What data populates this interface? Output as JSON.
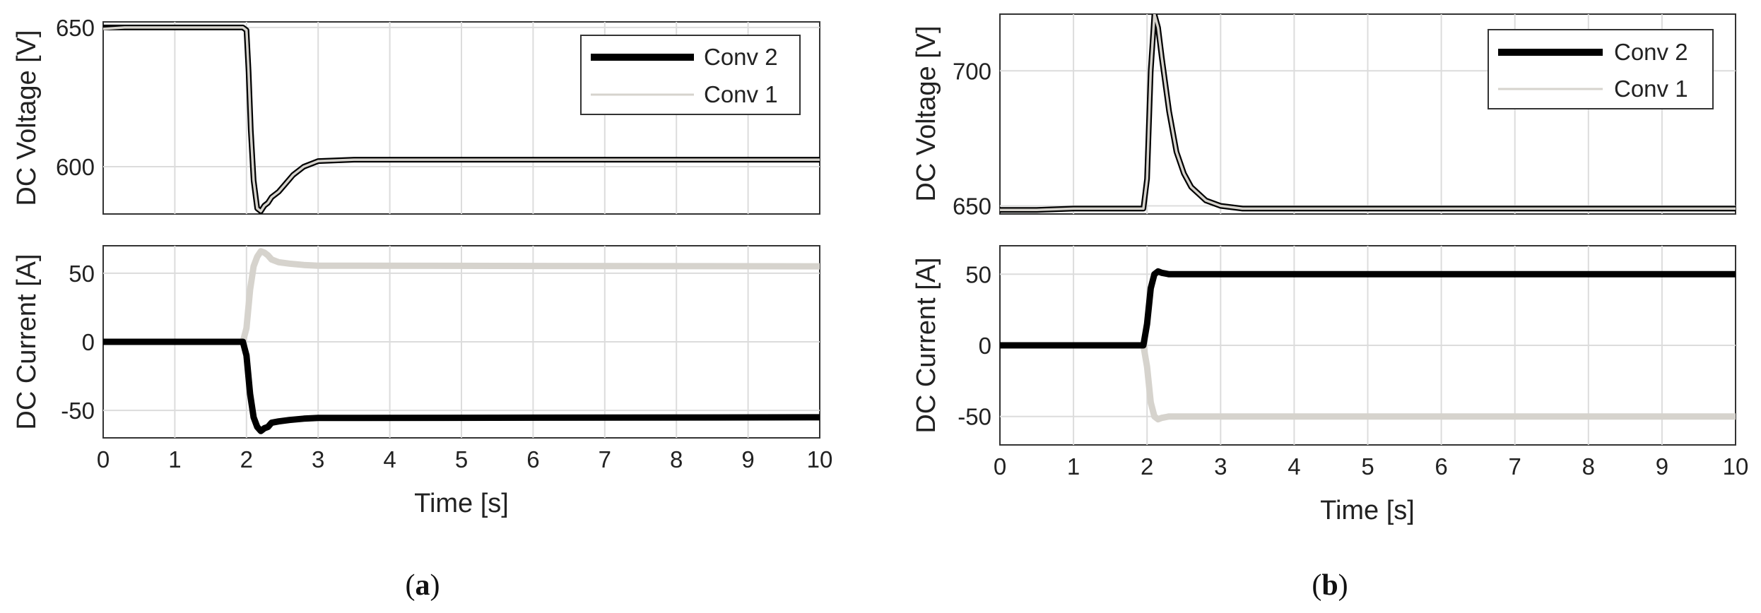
{
  "colors": {
    "conv2": "#000000",
    "conv1": "#d6d3cd",
    "grid": "#dcdcdc",
    "axis": "#333333"
  },
  "panels": [
    {
      "letter": "a",
      "caption_open": "(",
      "caption_close": ")"
    },
    {
      "letter": "b",
      "caption_open": "(",
      "caption_close": ")"
    }
  ],
  "chart_data": [
    {
      "type": "line",
      "panel": "a",
      "subplot": "top",
      "ylabel": "DC Voltage [V]",
      "xlim": [
        0,
        10
      ],
      "ylim": [
        583,
        652
      ],
      "yticks": [
        600,
        650
      ],
      "xticks": [
        0,
        1,
        2,
        3,
        4,
        5,
        6,
        7,
        8,
        9,
        10
      ],
      "grid": true,
      "legend": "top-right",
      "series": [
        {
          "name": "Conv 2",
          "color": "#000000",
          "x": [
            0,
            0.3,
            1.0,
            1.95,
            2.0,
            2.03,
            2.06,
            2.1,
            2.15,
            2.2,
            2.25,
            2.3,
            2.35,
            2.45,
            2.55,
            2.65,
            2.8,
            3.0,
            3.5,
            4,
            10
          ],
          "y": [
            650,
            650,
            650,
            650,
            649,
            634,
            613,
            595,
            585,
            584,
            586,
            587,
            589,
            591,
            594,
            597,
            600,
            602,
            602.5,
            602.5,
            602.5
          ]
        },
        {
          "name": "Conv 1",
          "color": "#d6d3cd",
          "x": [
            0,
            0.3,
            1.0,
            1.95,
            2.0,
            2.03,
            2.06,
            2.1,
            2.15,
            2.2,
            2.25,
            2.3,
            2.35,
            2.45,
            2.55,
            2.65,
            2.8,
            3.0,
            3.5,
            4,
            10
          ],
          "y": [
            649.5,
            650,
            650,
            650,
            649,
            634,
            613,
            595,
            585,
            584,
            586,
            587,
            589,
            591,
            594,
            597,
            600,
            602,
            602.5,
            602.5,
            602.5
          ]
        }
      ]
    },
    {
      "type": "line",
      "panel": "a",
      "subplot": "bottom",
      "xlabel": "Time [s]",
      "ylabel": "DC Current [A]",
      "xlim": [
        0,
        10
      ],
      "ylim": [
        -70,
        70
      ],
      "yticks": [
        -50,
        0,
        50
      ],
      "xticks": [
        0,
        1,
        2,
        3,
        4,
        5,
        6,
        7,
        8,
        9,
        10
      ],
      "grid": true,
      "series": [
        {
          "name": "Conv 2",
          "color": "#000000",
          "x": [
            0,
            1.95,
            2.0,
            2.05,
            2.1,
            2.15,
            2.2,
            2.25,
            2.3,
            2.35,
            2.45,
            2.6,
            2.8,
            3.0,
            10
          ],
          "y": [
            0,
            0,
            -10,
            -38,
            -55,
            -62,
            -65,
            -63,
            -62,
            -59,
            -58,
            -57,
            -56,
            -55.5,
            -55
          ]
        },
        {
          "name": "Conv 1",
          "color": "#d6d3cd",
          "x": [
            0,
            1.95,
            2.0,
            2.05,
            2.1,
            2.15,
            2.2,
            2.25,
            2.3,
            2.35,
            2.45,
            2.6,
            2.8,
            3.0,
            10
          ],
          "y": [
            0,
            0,
            10,
            38,
            55,
            62,
            66,
            65,
            63,
            60,
            58,
            57,
            56,
            55.5,
            55
          ]
        }
      ]
    },
    {
      "type": "line",
      "panel": "b",
      "subplot": "top",
      "ylabel": "DC Voltage [V]",
      "xlim": [
        0,
        10
      ],
      "ylim": [
        647,
        721
      ],
      "yticks": [
        650,
        700
      ],
      "xticks": [
        0,
        1,
        2,
        3,
        4,
        5,
        6,
        7,
        8,
        9,
        10
      ],
      "grid": true,
      "legend": "top-right",
      "series": [
        {
          "name": "Conv 2",
          "color": "#000000",
          "x": [
            0,
            0.5,
            1.0,
            1.95,
            2.0,
            2.05,
            2.1,
            2.15,
            2.2,
            2.3,
            2.4,
            2.5,
            2.6,
            2.8,
            3.0,
            3.3,
            4,
            10
          ],
          "y": [
            648.5,
            648.5,
            649,
            649,
            660,
            700,
            721,
            716,
            705,
            685,
            670,
            662,
            657,
            652,
            650,
            649,
            649,
            649
          ]
        },
        {
          "name": "Conv 1",
          "color": "#d6d3cd",
          "x": [
            0,
            0.5,
            1.0,
            1.95,
            2.0,
            2.05,
            2.1,
            2.15,
            2.2,
            2.3,
            2.4,
            2.5,
            2.6,
            2.8,
            3.0,
            3.3,
            4,
            10
          ],
          "y": [
            648.5,
            648.5,
            649,
            649,
            660,
            700,
            721,
            716,
            705,
            685,
            670,
            662,
            657,
            652,
            650,
            649,
            649,
            649
          ]
        }
      ]
    },
    {
      "type": "line",
      "panel": "b",
      "subplot": "bottom",
      "xlabel": "Time [s]",
      "ylabel": "DC Current [A]",
      "xlim": [
        0,
        10
      ],
      "ylim": [
        -70,
        70
      ],
      "yticks": [
        -50,
        0,
        50
      ],
      "xticks": [
        0,
        1,
        2,
        3,
        4,
        5,
        6,
        7,
        8,
        9,
        10
      ],
      "grid": true,
      "series": [
        {
          "name": "Conv 2",
          "color": "#000000",
          "x": [
            0,
            1.95,
            2.0,
            2.05,
            2.1,
            2.15,
            2.2,
            2.3,
            2.5,
            10
          ],
          "y": [
            0,
            0,
            15,
            40,
            50,
            52,
            51,
            50,
            50,
            50
          ]
        },
        {
          "name": "Conv 1",
          "color": "#d6d3cd",
          "x": [
            0,
            1.95,
            2.0,
            2.05,
            2.1,
            2.15,
            2.2,
            2.3,
            2.5,
            10
          ],
          "y": [
            0,
            0,
            -15,
            -40,
            -50,
            -52,
            -51,
            -50,
            -50,
            -50
          ]
        }
      ]
    }
  ]
}
